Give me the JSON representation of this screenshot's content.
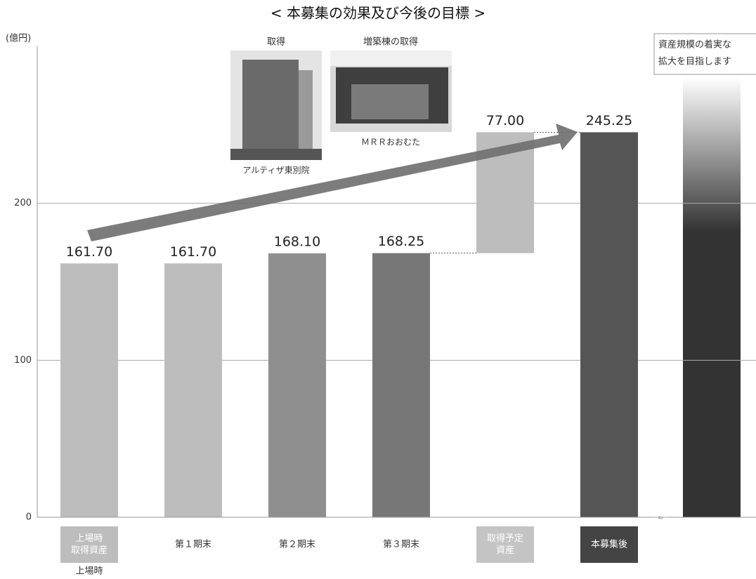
{
  "chart_data": {
    "type": "waterfall",
    "title": "< 本募集の効果及び今後の目標 >",
    "y_unit": "(億円)",
    "categories": [
      [
        "上場時",
        "取得資産"
      ],
      [
        "第１期末"
      ],
      [
        "第２期末"
      ],
      [
        "第３期末"
      ],
      [
        "取得予定",
        "資産"
      ],
      [
        "本募集後"
      ]
    ],
    "category_note": "上場時",
    "values": [
      161.7,
      161.7,
      168.1,
      168.25,
      77,
      245.25
    ],
    "value_labels": [
      "161.70",
      "161.70",
      "168.10",
      "168.25",
      "77.00",
      "245.25"
    ],
    "floating": [
      false,
      false,
      false,
      false,
      true,
      false
    ],
    "colors": [
      "#bdbdbd",
      "#bdbdbd",
      "#8f8f8f",
      "#777777",
      "#bdbdbd",
      "#555555"
    ],
    "label_box_colors": [
      "#bdbdbd",
      null,
      null,
      null,
      "#c4c4c4",
      "#444444"
    ],
    "ylim": [
      0,
      300
    ],
    "yticks": [
      0,
      100,
      200
    ],
    "grid": true,
    "photos": [
      {
        "caption_top": "取得",
        "caption_bottom": "アルティザ東別院"
      },
      {
        "caption_top": "増築棟の取得",
        "caption_bottom": "ＭＲＲおおむた"
      }
    ],
    "goal_text": [
      "資産規模の着実な",
      "拡大を目指します"
    ]
  }
}
